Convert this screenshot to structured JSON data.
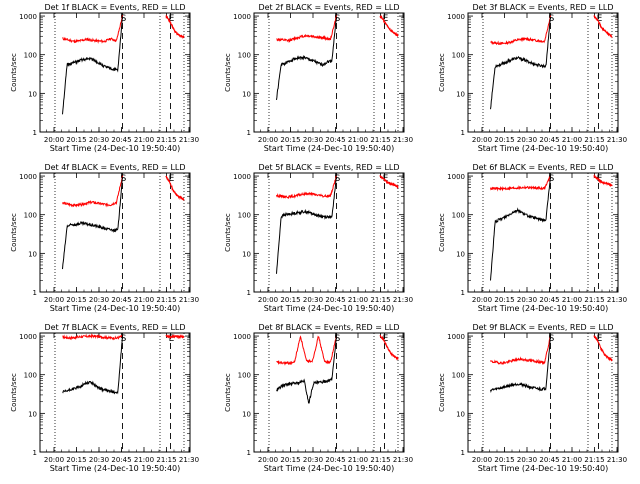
{
  "chart_data": {
    "layout": "3x3 grid",
    "shared": {
      "xlabel": "Start Time (24-Dec-10 19:50:40)",
      "ylabel": "Counts/sec",
      "x_ticks": [
        "20:00",
        "20:15",
        "20:30",
        "20:45",
        "21:00",
        "21:15",
        "21:30"
      ],
      "x_tick_minutes": [
        9.33,
        24.33,
        39.33,
        54.33,
        69.33,
        84.33,
        99.33
      ],
      "xlim_minutes": [
        0,
        100
      ],
      "y_scale": "log",
      "ylim": [
        1,
        1200
      ],
      "y_ticks": [
        "1",
        "10",
        "100",
        "1000"
      ],
      "y_tick_values": [
        1,
        10,
        100,
        1000
      ],
      "series_colors": {
        "events": "#000000",
        "lld": "#ff0000"
      },
      "dotted_lines_minutes": [
        10,
        80,
        96
      ],
      "dashed_lines_minutes": [
        55,
        87
      ],
      "markers": [
        {
          "label": "S",
          "x_minute": 55
        },
        {
          "label": "E",
          "x_minute": 87
        }
      ],
      "data_start_minute": 15,
      "drop_minute": 84
    },
    "panels": [
      {
        "title": "Det 1f BLACK = Events, RED = LLD",
        "lld": [
          260,
          240,
          220,
          230,
          250,
          235,
          225,
          220,
          260,
          230,
          1000,
          740,
          480,
          350,
          310,
          280
        ],
        "events": [
          3,
          55,
          60,
          65,
          72,
          75,
          80,
          70,
          60,
          50,
          45,
          42,
          40,
          1000
        ]
      },
      {
        "title": "Det 2f BLACK = Events, RED = LLD",
        "lld": [
          250,
          240,
          230,
          260,
          290,
          310,
          300,
          280,
          270,
          250,
          1000,
          800,
          560,
          420,
          360,
          320
        ],
        "events": [
          7,
          55,
          60,
          70,
          80,
          82,
          85,
          75,
          70,
          60,
          55,
          65,
          70,
          1000
        ]
      },
      {
        "title": "Det 3f BLACK = Events, RED = LLD",
        "lld": [
          210,
          200,
          195,
          205,
          230,
          250,
          255,
          240,
          230,
          220,
          1000,
          780,
          520,
          410,
          350,
          300
        ],
        "events": [
          4,
          50,
          55,
          60,
          70,
          78,
          82,
          75,
          68,
          60,
          55,
          52,
          50,
          1000
        ]
      },
      {
        "title": "Det 4f BLACK = Events, RED = LLD",
        "lld": [
          200,
          185,
          175,
          180,
          200,
          210,
          195,
          185,
          180,
          210,
          1000,
          700,
          420,
          320,
          280,
          240
        ],
        "events": [
          4,
          50,
          55,
          56,
          60,
          58,
          55,
          52,
          48,
          45,
          42,
          40,
          40,
          1000
        ]
      },
      {
        "title": "Det 5f BLACK = Events, RED = LLD",
        "lld": [
          310,
          300,
          290,
          300,
          330,
          350,
          340,
          320,
          300,
          310,
          1000,
          850,
          700,
          620,
          580,
          520
        ],
        "events": [
          3,
          90,
          100,
          105,
          110,
          115,
          120,
          115,
          105,
          95,
          90,
          88,
          85,
          1000
        ]
      },
      {
        "title": "Det 6f BLACK = Events, RED = LLD",
        "lld": [
          480,
          470,
          470,
          480,
          490,
          500,
          510,
          500,
          490,
          480,
          1000,
          850,
          700,
          650,
          620,
          580
        ],
        "events": [
          2,
          65,
          75,
          85,
          100,
          120,
          130,
          110,
          95,
          85,
          80,
          75,
          72,
          1000
        ]
      },
      {
        "title": "Det 7f BLACK = Events, RED = LLD",
        "lld": [
          950,
          900,
          920,
          960,
          980,
          1000,
          970,
          930,
          900,
          880,
          1000,
          950,
          980,
          990,
          970,
          960
        ],
        "events": [
          35,
          38,
          42,
          45,
          50,
          60,
          65,
          55,
          45,
          40,
          38,
          36,
          35,
          1000
        ]
      },
      {
        "title": "Det 8f BLACK = Events, RED = LLD",
        "lld": [
          210,
          200,
          200,
          210,
          1000,
          220,
          230,
          1000,
          220,
          210,
          1000,
          800,
          520,
          360,
          300,
          260
        ],
        "events": [
          40,
          50,
          55,
          58,
          60,
          62,
          70,
          18,
          60,
          62,
          65,
          70,
          75,
          1000
        ]
      },
      {
        "title": "Det 9f BLACK = Events, RED = LLD",
        "lld": [
          220,
          210,
          200,
          215,
          240,
          250,
          240,
          230,
          215,
          205,
          1000,
          760,
          460,
          330,
          270,
          240
        ],
        "events": [
          40,
          42,
          45,
          48,
          52,
          55,
          58,
          55,
          50,
          46,
          44,
          42,
          45,
          1000
        ]
      }
    ]
  }
}
